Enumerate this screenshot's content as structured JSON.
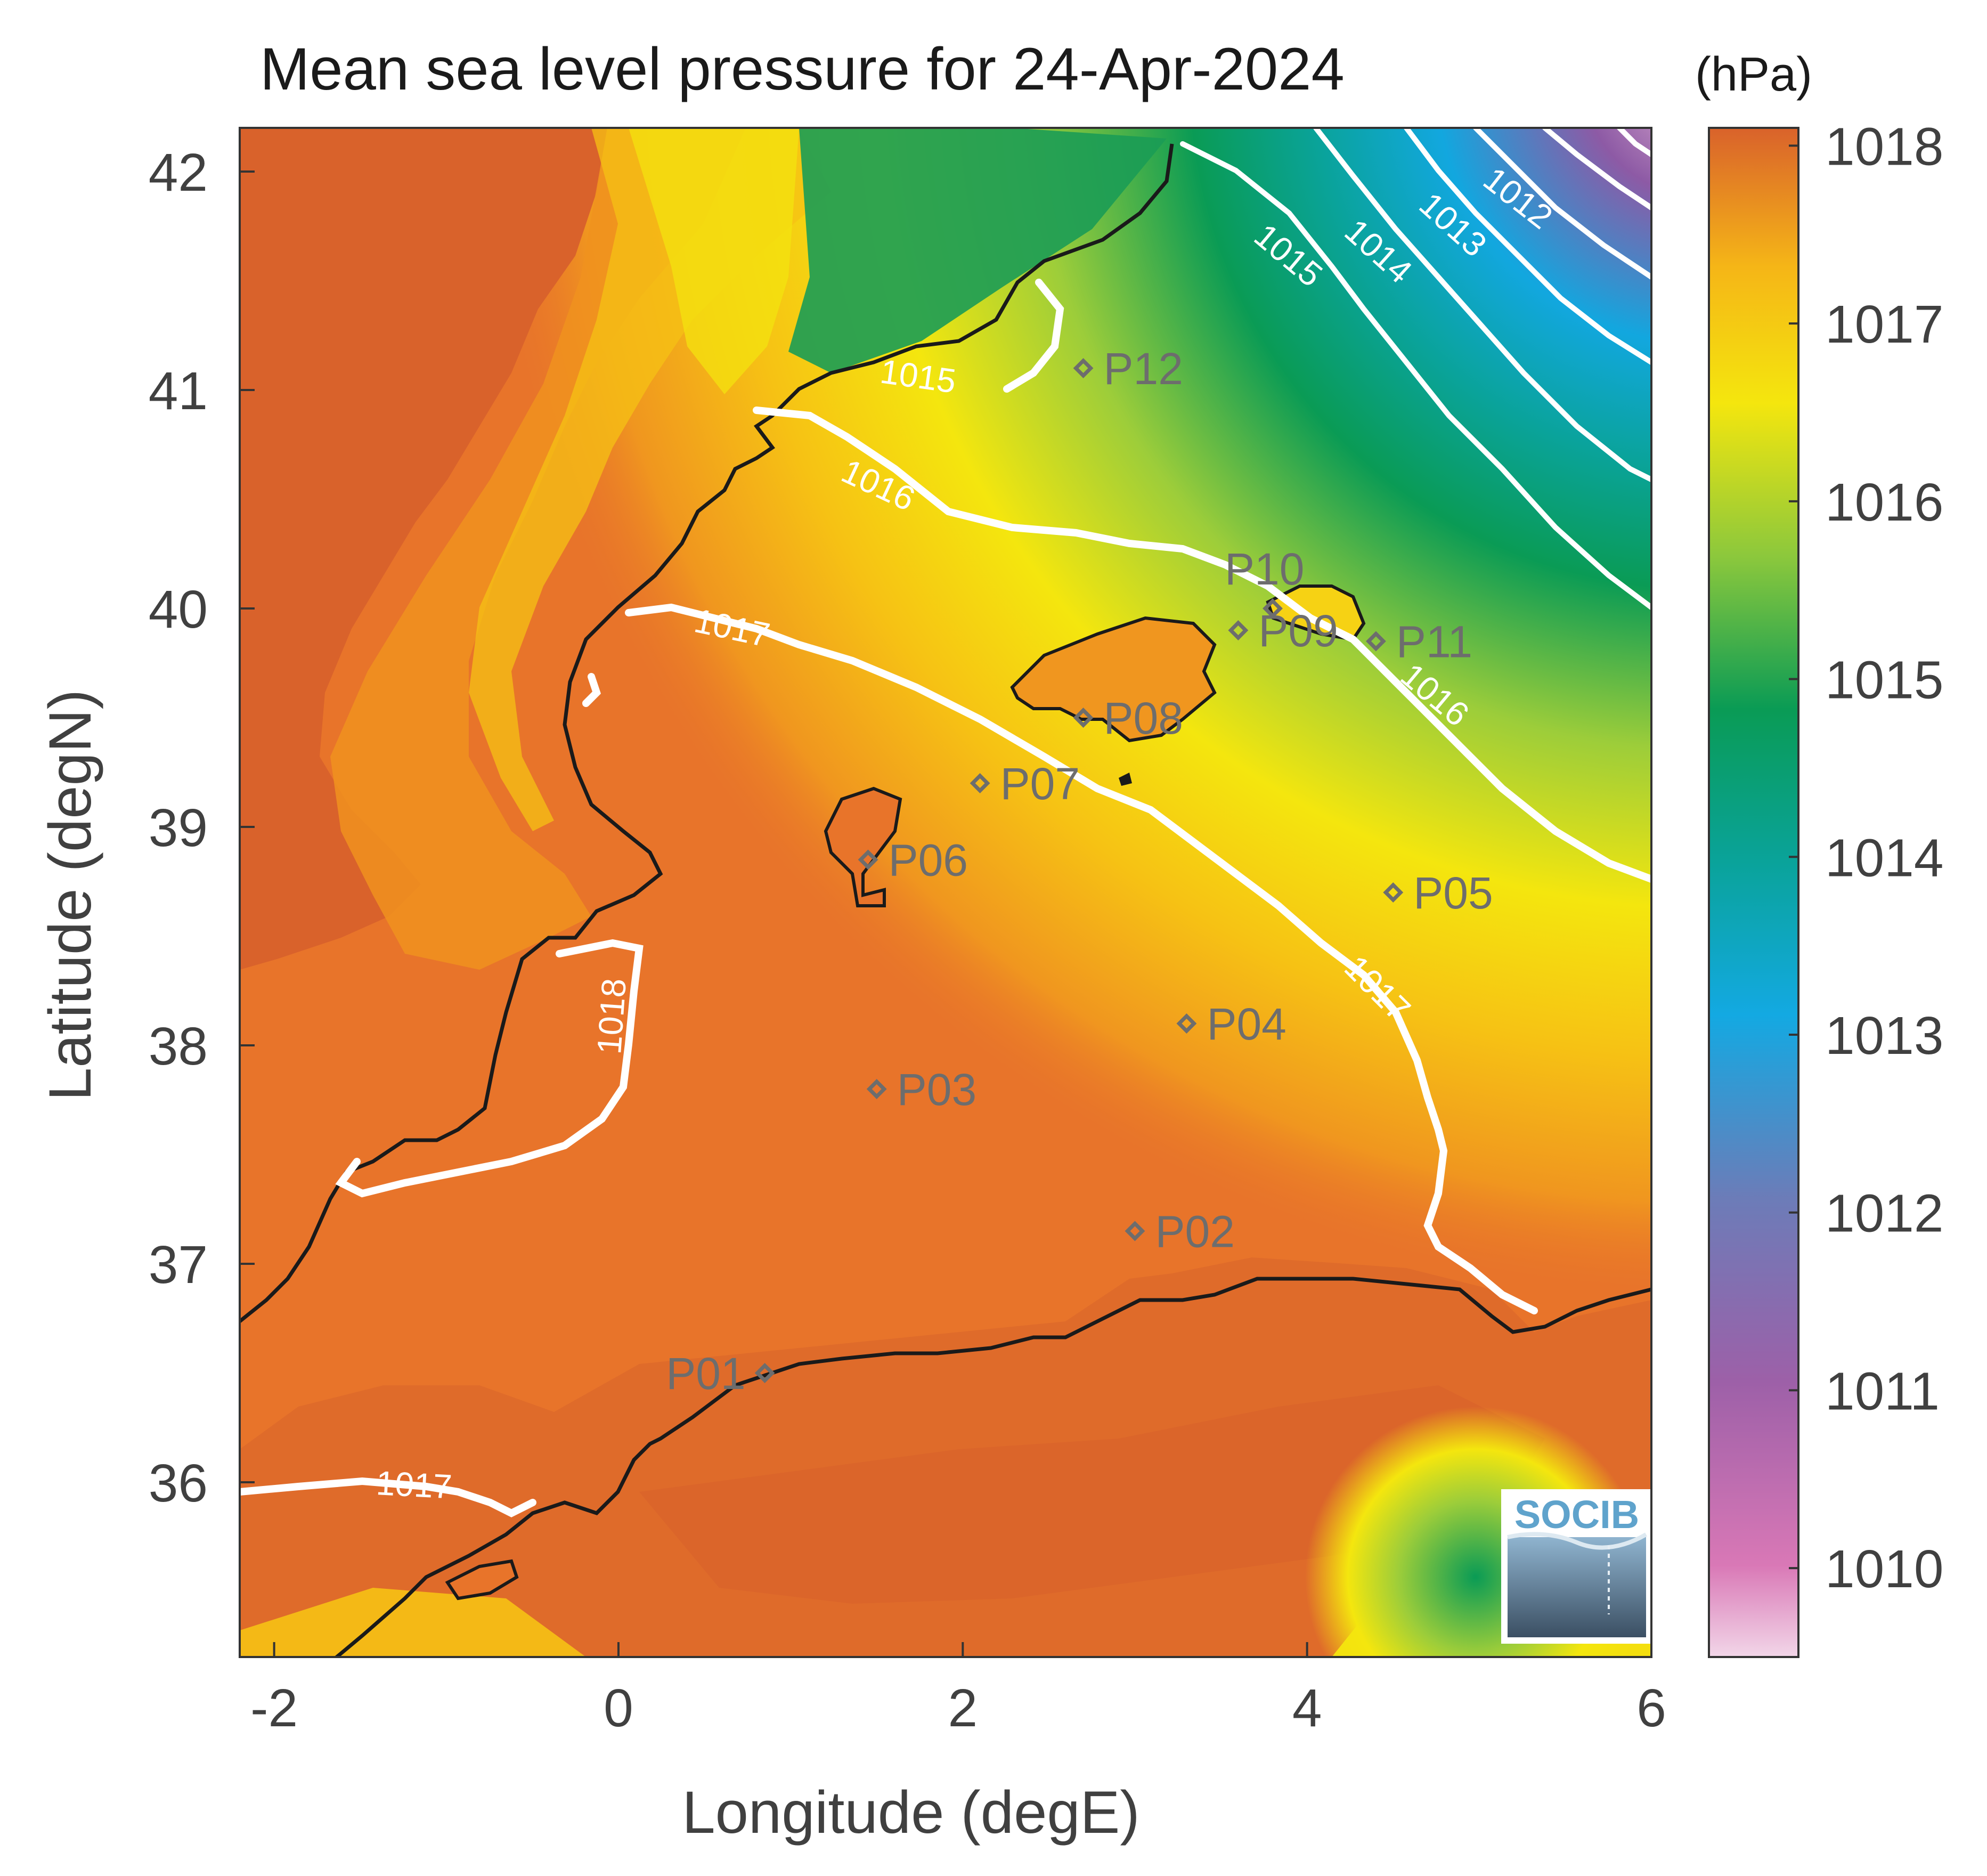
{
  "title": "Mean sea level pressure for 24-Apr-2024",
  "colorbar": {
    "unit": "(hPa)",
    "range": [
      1009.5,
      1018.1
    ],
    "ticks": [
      "1010",
      "1011",
      "1012",
      "1013",
      "1014",
      "1015",
      "1016",
      "1017",
      "1018"
    ]
  },
  "axes": {
    "xlabel": "Longitude (degE)",
    "ylabel": "Latitude (degN)",
    "xlim": [
      -2.2,
      6
    ],
    "ylim": [
      35.2,
      42.2
    ],
    "xticks": [
      "-2",
      "0",
      "2",
      "4",
      "6"
    ],
    "yticks": [
      "36",
      "37",
      "38",
      "39",
      "40",
      "41",
      "42"
    ]
  },
  "contour_labels": [
    "1015",
    "1015",
    "1016",
    "1016",
    "1017",
    "1017",
    "1017",
    "1018",
    "1014",
    "1013",
    "1012"
  ],
  "points": [
    {
      "id": "P01",
      "lon": 0.85,
      "lat": 36.5
    },
    {
      "id": "P02",
      "lon": 3.0,
      "lat": 37.15
    },
    {
      "id": "P03",
      "lon": 1.5,
      "lat": 37.8
    },
    {
      "id": "P04",
      "lon": 3.3,
      "lat": 38.1
    },
    {
      "id": "P05",
      "lon": 4.5,
      "lat": 38.7
    },
    {
      "id": "P06",
      "lon": 1.45,
      "lat": 38.85
    },
    {
      "id": "P07",
      "lon": 2.1,
      "lat": 39.2
    },
    {
      "id": "P08",
      "lon": 2.7,
      "lat": 39.5
    },
    {
      "id": "P09",
      "lon": 3.6,
      "lat": 39.9
    },
    {
      "id": "P10",
      "lon": 3.8,
      "lat": 40.0
    },
    {
      "id": "P11",
      "lon": 4.4,
      "lat": 39.85
    },
    {
      "id": "P12",
      "lon": 2.7,
      "lat": 41.1
    }
  ],
  "logo": "SOCIB",
  "colors": {
    "land_low": "#d9622b",
    "sea_high": "#e8742a",
    "mid_orange": "#f3a21c",
    "yellow": "#f4e60e",
    "green": "#0a9b55",
    "teal": "#0aa39a",
    "blue": "#12a7df",
    "purple": "#8d5aa5",
    "pink": "#e8b8d6",
    "contour": "#ffffff",
    "coast": "#1a1a1a",
    "marker": "#6d6d6d"
  }
}
